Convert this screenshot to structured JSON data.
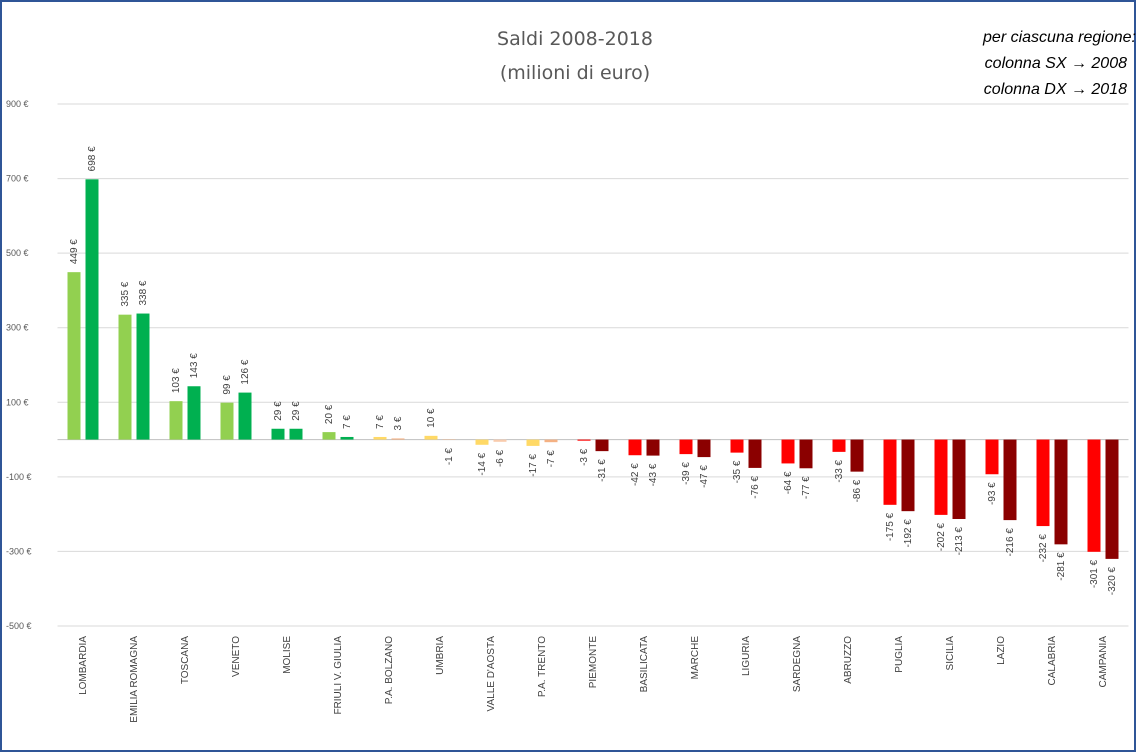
{
  "chart_data": {
    "type": "bar",
    "title": "Saldi 2008-2018",
    "subtitle": "(milioni di euro)",
    "legend_title": "per ciascuna regione:",
    "categories": [
      "LOMBARDIA",
      "EMILIA ROMAGNA",
      "TOSCANA",
      "VENETO",
      "MOLISE",
      "FRIULI V. GIULIA",
      "P.A. BOLZANO",
      "UMBRIA",
      "VALLE D'AOSTA",
      "P.A. TRENTO",
      "PIEMONTE",
      "BASILICATA",
      "MARCHE",
      "LIGURIA",
      "SARDEGNA",
      "ABRUZZO",
      "PUGLIA",
      "SICILIA",
      "LAZIO",
      "CALABRIA",
      "CAMPANIA"
    ],
    "series": [
      {
        "name": "colonna SX → 2008",
        "colors": [
          "#92d050",
          "#92d050",
          "#92d050",
          "#92d050",
          "#00b050",
          "#92d050",
          "#ffd966",
          "#ffd966",
          "#ffd966",
          "#ffd966",
          "#ff0000",
          "#ff0000",
          "#ff0000",
          "#ff0000",
          "#ff0000",
          "#ff0000",
          "#ff0000",
          "#ff0000",
          "#ff0000",
          "#ff0000",
          "#ff0000"
        ],
        "values": [
          449,
          335,
          103,
          99,
          29,
          20,
          7,
          10,
          -14,
          -17,
          -3,
          -42,
          -39,
          -35,
          -64,
          -33,
          -175,
          -202,
          -93,
          -232,
          -301
        ],
        "value_labels": [
          "449 €",
          "335 €",
          "103 €",
          "99 €",
          "29 €",
          "20 €",
          "7 €",
          "10 €",
          "-14 €",
          "-17 €",
          "-3 €",
          "-42 €",
          "-39 €",
          "-35 €",
          "-64 €",
          "-33 €",
          "-175 €",
          "-202 €",
          "-93 €",
          "-232 €",
          "-301 €"
        ]
      },
      {
        "name": "colonna DX → 2018",
        "colors": [
          "#00b050",
          "#00b050",
          "#00b050",
          "#00b050",
          "#00b050",
          "#00b050",
          "#f4b183",
          "#f4b183",
          "#f8cbad",
          "#f4b183",
          "#8b0000",
          "#8b0000",
          "#8b0000",
          "#8b0000",
          "#8b0000",
          "#8b0000",
          "#8b0000",
          "#8b0000",
          "#8b0000",
          "#8b0000",
          "#8b0000"
        ],
        "values": [
          698,
          338,
          143,
          126,
          29,
          7,
          3,
          -1,
          -6,
          -7,
          -31,
          -43,
          -47,
          -76,
          -77,
          -86,
          -192,
          -213,
          -216,
          -281,
          -320
        ],
        "value_labels": [
          "698 €",
          "338 €",
          "143 €",
          "126 €",
          "29 €",
          "7 €",
          "3 €",
          "-1 €",
          "-6 €",
          "-7 €",
          "-31 €",
          "-43 €",
          "-47 €",
          "-76 €",
          "-77 €",
          "-86 €",
          "-192 €",
          "-213 €",
          "-216 €",
          "-281 €",
          "-320 €"
        ]
      }
    ],
    "ylim": [
      -500,
      900
    ],
    "yticks": [
      {
        "value": -500,
        "label": "-500 €"
      },
      {
        "value": -300,
        "label": "-300 €"
      },
      {
        "value": -100,
        "label": "-100 €"
      },
      {
        "value": 100,
        "label": "100 €"
      },
      {
        "value": 300,
        "label": "300 €"
      },
      {
        "value": 500,
        "label": "500 €"
      },
      {
        "value": 700,
        "label": "700 €"
      },
      {
        "value": 900,
        "label": "900 €"
      }
    ],
    "grid": true
  }
}
